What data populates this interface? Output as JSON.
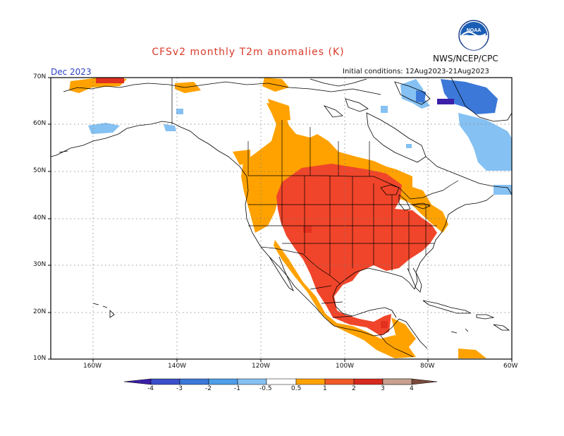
{
  "title": "CFSv2 monthly T2m anomalies (K)",
  "agency": "NWS/NCEP/CPC",
  "forecast_month": "Dec 2023",
  "initial_conditions": "Initial conditions: 12Aug2023-21Aug2023",
  "logo_text": "NOAA",
  "lat_labels": [
    "70N",
    "60N",
    "50N",
    "40N",
    "30N",
    "20N",
    "10N"
  ],
  "lon_labels": [
    "160W",
    "140W",
    "120W",
    "100W",
    "80W",
    "60W"
  ],
  "colorbar": {
    "labels": [
      "-4",
      "-3",
      "-2",
      "-1",
      "-0.5",
      "0.5",
      "1",
      "2",
      "3",
      "4"
    ],
    "colors": [
      "#3b1fa8",
      "#3a4fc9",
      "#3b78d8",
      "#4f9ee8",
      "#85c1f2",
      "#ffffff",
      "#ffa200",
      "#f05a28",
      "#d62a1e",
      "#9c0505",
      "#c9a08f",
      "#7a4a3a"
    ]
  },
  "map": {
    "region": "North America",
    "lat_range": [
      10,
      70
    ],
    "lon_range": [
      -170,
      -60
    ],
    "grid": "dotted"
  }
}
